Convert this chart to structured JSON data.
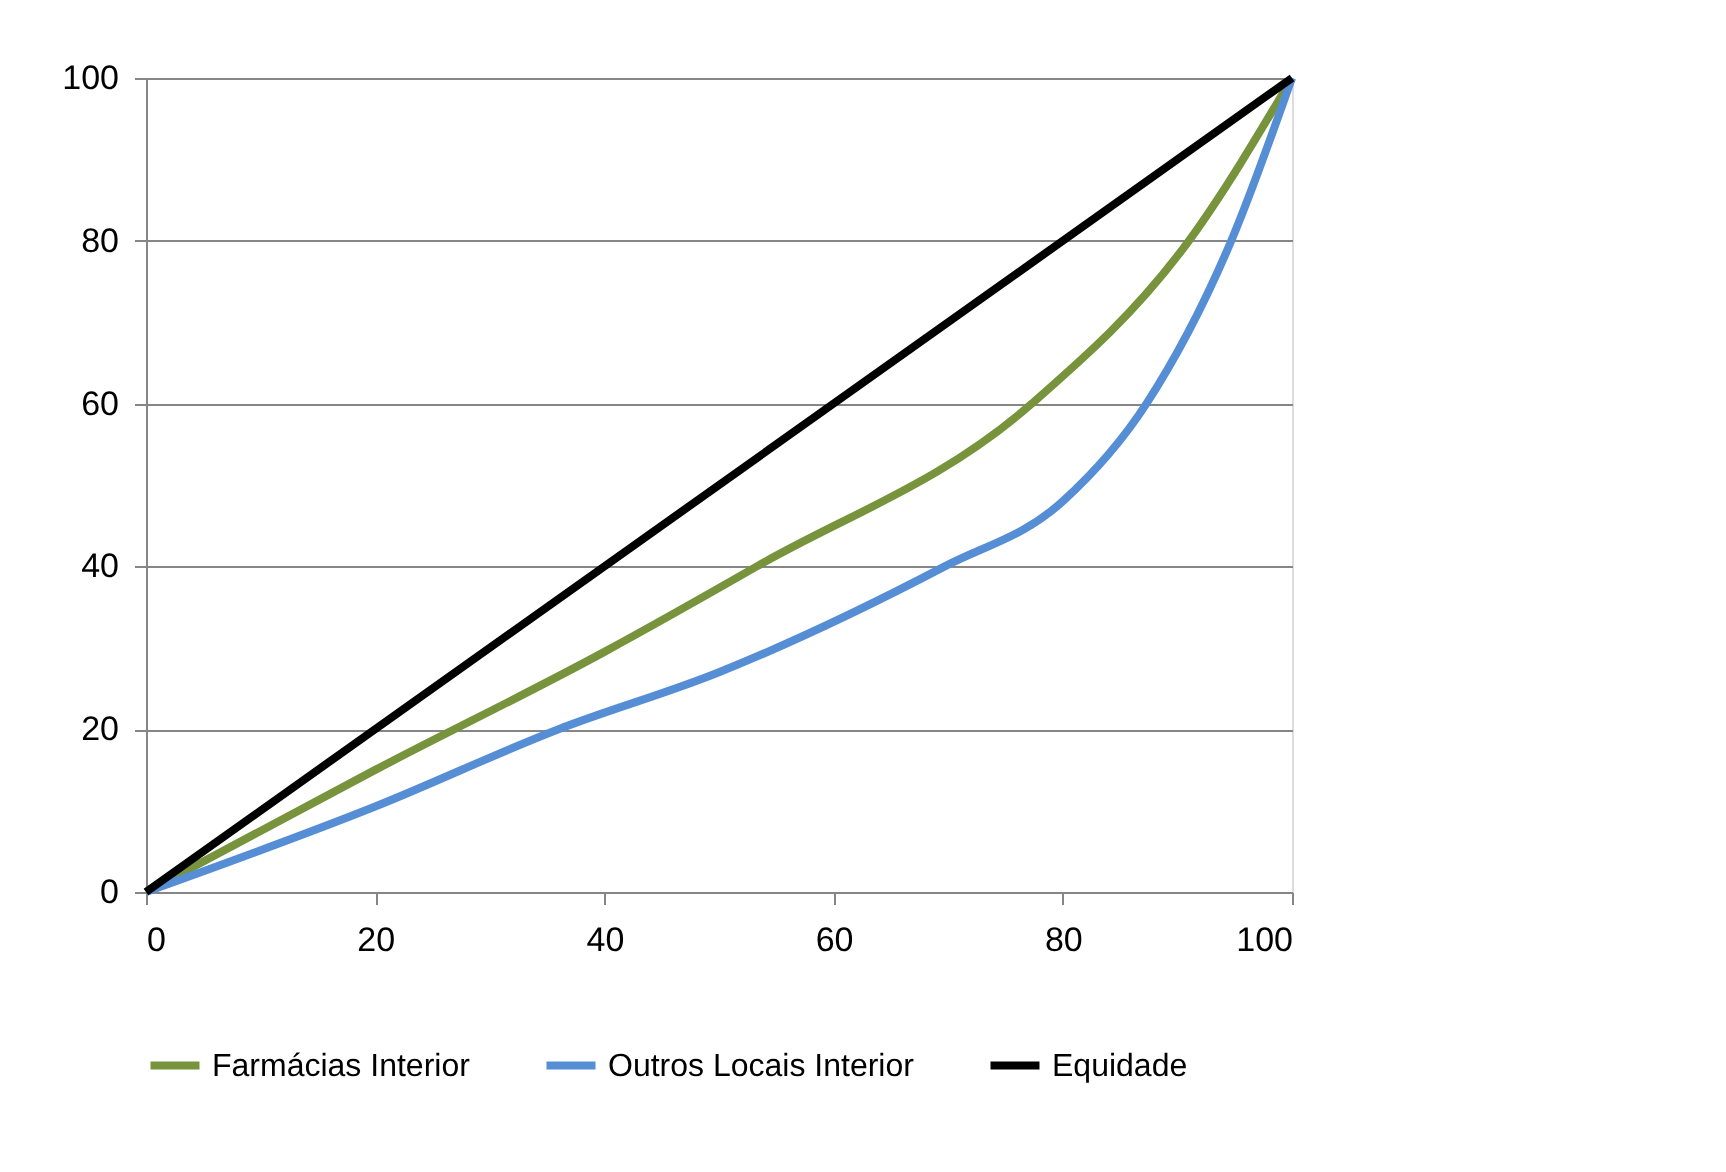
{
  "chart_data": {
    "type": "line",
    "xlim": [
      0,
      100
    ],
    "xticks": [
      0,
      20,
      40,
      60,
      80,
      100
    ],
    "ylim": [
      0,
      100
    ],
    "yticks": [
      0,
      20,
      40,
      60,
      80,
      100
    ],
    "grid": "y",
    "legend": "bottom",
    "marker": "none",
    "line_style": "solid",
    "series": [
      {
        "name": "Farmácias Interior",
        "color": "#77933c",
        "x": [
          0,
          20,
          40,
          53.3,
          77.3,
          91,
          100
        ],
        "values": [
          0,
          15,
          29.5,
          40,
          60,
          80,
          100
        ]
      },
      {
        "name": "Outros Locais Interior",
        "color": "#558ed5",
        "x": [
          0,
          20,
          36,
          50,
          69.7,
          80,
          87.3,
          94.7,
          100
        ],
        "values": [
          0,
          10.5,
          20,
          27,
          40,
          48,
          60,
          80,
          100
        ]
      },
      {
        "name": "Equidade",
        "color": "#000000",
        "x": [
          0,
          100
        ],
        "values": [
          0,
          100
        ]
      }
    ]
  }
}
